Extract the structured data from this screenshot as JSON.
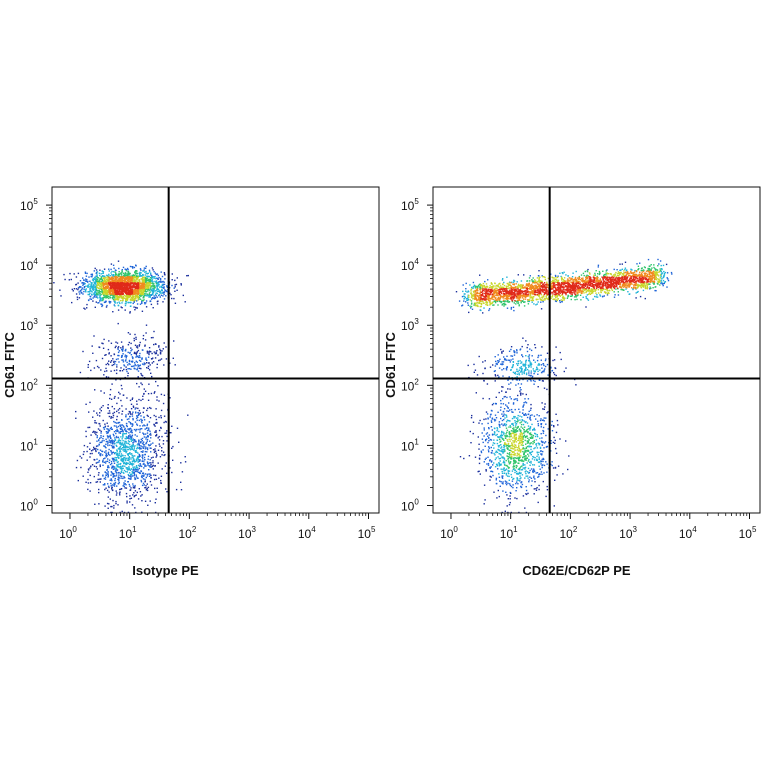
{
  "chart_data": [
    {
      "type": "scatter",
      "title": "",
      "xlabel": "Isotype PE",
      "ylabel": "CD61 FITC",
      "x_scale": "log",
      "y_scale": "log",
      "xlim": [
        0.5,
        150000
      ],
      "ylim": [
        0.75,
        200000
      ],
      "x_ticks": [
        {
          "base": "10",
          "exp": "0",
          "value": 1
        },
        {
          "base": "10",
          "exp": "1",
          "value": 10
        },
        {
          "base": "10",
          "exp": "2",
          "value": 100
        },
        {
          "base": "10",
          "exp": "3",
          "value": 1000
        },
        {
          "base": "10",
          "exp": "4",
          "value": 10000
        },
        {
          "base": "10",
          "exp": "5",
          "value": 100000
        }
      ],
      "y_ticks": [
        {
          "base": "10",
          "exp": "0",
          "value": 1
        },
        {
          "base": "10",
          "exp": "1",
          "value": 10
        },
        {
          "base": "10",
          "exp": "2",
          "value": 100
        },
        {
          "base": "10",
          "exp": "3",
          "value": 1000
        },
        {
          "base": "10",
          "exp": "4",
          "value": 10000
        },
        {
          "base": "10",
          "exp": "5",
          "value": 100000
        }
      ],
      "quadrant_gate": {
        "x": 45,
        "y": 130
      },
      "grid": false,
      "density_colors": [
        "#1a2e9c",
        "#1e64d8",
        "#21b4d8",
        "#2ec46a",
        "#c8d62a",
        "#f08a1e",
        "#e02a1a"
      ],
      "populations": [
        {
          "x_center": 8,
          "y_center": 4500,
          "x_spread_decades": 0.34,
          "y_spread_decades": 0.13,
          "count": 2200
        },
        {
          "x_center": 10,
          "y_center": 300,
          "x_spread_decades": 0.3,
          "y_spread_decades": 0.18,
          "count": 280
        },
        {
          "x_center": 9,
          "y_center": 8,
          "x_spread_decades": 0.33,
          "y_spread_decades": 0.42,
          "count": 1300
        }
      ]
    },
    {
      "type": "scatter",
      "title": "",
      "xlabel": "CD62E/CD62P PE",
      "ylabel": "CD61 FITC",
      "x_scale": "log",
      "y_scale": "log",
      "xlim": [
        0.5,
        150000
      ],
      "ylim": [
        0.75,
        200000
      ],
      "x_ticks": [
        {
          "base": "10",
          "exp": "0",
          "value": 1
        },
        {
          "base": "10",
          "exp": "1",
          "value": 10
        },
        {
          "base": "10",
          "exp": "2",
          "value": 100
        },
        {
          "base": "10",
          "exp": "3",
          "value": 1000
        },
        {
          "base": "10",
          "exp": "4",
          "value": 10000
        },
        {
          "base": "10",
          "exp": "5",
          "value": 100000
        }
      ],
      "y_ticks": [
        {
          "base": "10",
          "exp": "0",
          "value": 1
        },
        {
          "base": "10",
          "exp": "1",
          "value": 10
        },
        {
          "base": "10",
          "exp": "2",
          "value": 100
        },
        {
          "base": "10",
          "exp": "3",
          "value": 1000
        },
        {
          "base": "10",
          "exp": "4",
          "value": 10000
        },
        {
          "base": "10",
          "exp": "5",
          "value": 100000
        }
      ],
      "quadrant_gate": {
        "x": 45,
        "y": 130
      },
      "grid": false,
      "density_colors": [
        "#1a2e9c",
        "#1e64d8",
        "#21b4d8",
        "#2ec46a",
        "#c8d62a",
        "#f08a1e",
        "#e02a1a"
      ],
      "populations": [
        {
          "x_start": 2,
          "x_end": 3000,
          "y_start": 3000,
          "y_end": 6500,
          "x_spread_decades": 0.1,
          "y_spread_decades": 0.1,
          "count": 2800
        },
        {
          "x_center": 15,
          "y_center": 200,
          "x_spread_decades": 0.3,
          "y_spread_decades": 0.18,
          "count": 300
        },
        {
          "x_center": 12,
          "y_center": 10,
          "x_spread_decades": 0.3,
          "y_spread_decades": 0.4,
          "count": 1100
        }
      ]
    }
  ]
}
